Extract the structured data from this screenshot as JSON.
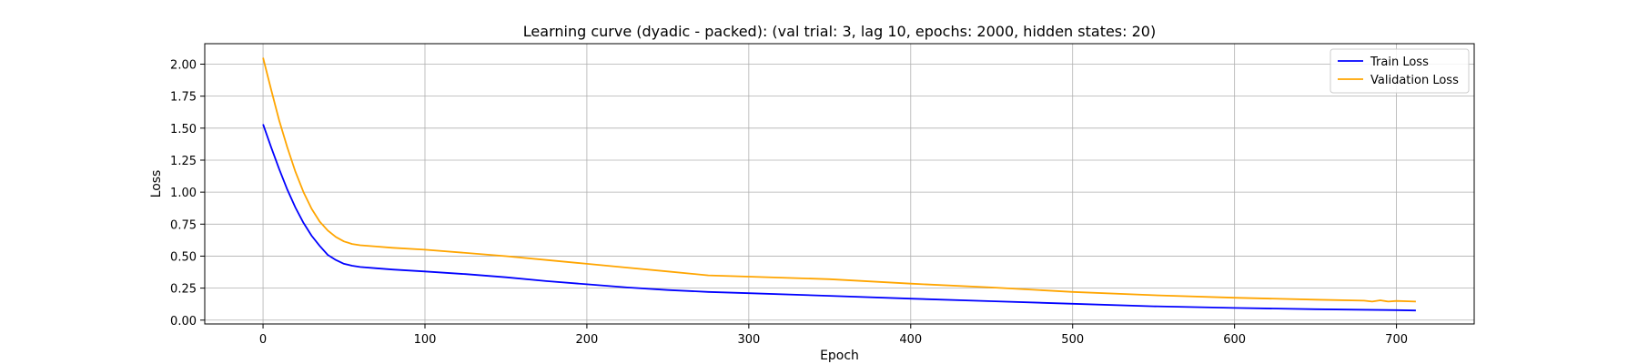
{
  "chart_data": {
    "type": "line",
    "title": "Learning curve (dyadic - packed): (val trial: 3, lag 10, epochs: 2000, hidden states: 20)",
    "xlabel": "Epoch",
    "ylabel": "Loss",
    "xlim": [
      -36,
      748
    ],
    "ylim": [
      -0.03,
      2.16
    ],
    "xticks": [
      0,
      100,
      200,
      300,
      400,
      500,
      600,
      700
    ],
    "yticks": [
      0.0,
      0.25,
      0.5,
      0.75,
      1.0,
      1.25,
      1.5,
      1.75,
      2.0
    ],
    "ytick_labels": [
      "0.00",
      "0.25",
      "0.50",
      "0.75",
      "1.00",
      "1.25",
      "1.50",
      "1.75",
      "2.00"
    ],
    "grid": true,
    "legend_position": "top-right",
    "series": [
      {
        "name": "Train Loss",
        "color": "#0000ff",
        "x": [
          0,
          5,
          10,
          15,
          20,
          25,
          30,
          35,
          40,
          45,
          50,
          55,
          60,
          70,
          80,
          100,
          125,
          150,
          175,
          200,
          225,
          250,
          275,
          300,
          350,
          400,
          450,
          500,
          550,
          600,
          650,
          700,
          712
        ],
        "y": [
          1.53,
          1.35,
          1.18,
          1.02,
          0.88,
          0.76,
          0.66,
          0.58,
          0.51,
          0.47,
          0.44,
          0.425,
          0.415,
          0.405,
          0.395,
          0.38,
          0.36,
          0.335,
          0.305,
          0.28,
          0.255,
          0.235,
          0.22,
          0.21,
          0.19,
          0.168,
          0.148,
          0.128,
          0.108,
          0.095,
          0.085,
          0.078,
          0.075
        ]
      },
      {
        "name": "Validation Loss",
        "color": "#ffa500",
        "x": [
          0,
          5,
          10,
          15,
          20,
          25,
          30,
          35,
          40,
          45,
          50,
          55,
          60,
          70,
          80,
          100,
          125,
          150,
          175,
          200,
          225,
          250,
          275,
          300,
          350,
          400,
          450,
          500,
          550,
          600,
          650,
          680,
          685,
          690,
          695,
          700,
          712
        ],
        "y": [
          2.05,
          1.8,
          1.56,
          1.35,
          1.16,
          1.0,
          0.87,
          0.77,
          0.7,
          0.65,
          0.615,
          0.595,
          0.585,
          0.575,
          0.565,
          0.55,
          0.525,
          0.5,
          0.47,
          0.44,
          0.41,
          0.38,
          0.35,
          0.34,
          0.32,
          0.285,
          0.255,
          0.22,
          0.195,
          0.175,
          0.16,
          0.152,
          0.145,
          0.155,
          0.145,
          0.15,
          0.145
        ]
      }
    ]
  }
}
